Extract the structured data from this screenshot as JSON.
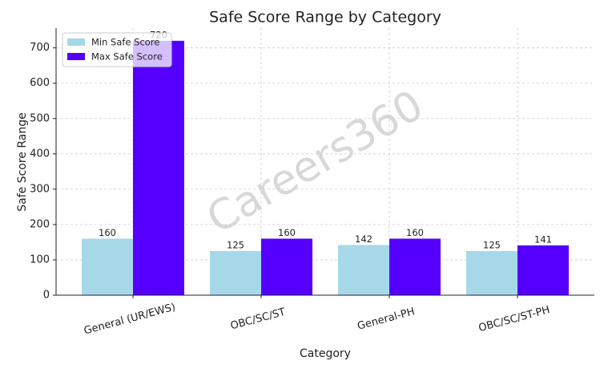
{
  "chart_data": {
    "type": "bar",
    "title": "Safe Score Range by Category",
    "x_label": "Category",
    "y_label": "Safe Score Range",
    "categories": [
      "General (UR/EWS)",
      "OBC/SC/ST",
      "General-PH",
      "OBC/SC/ST-PH"
    ],
    "series": [
      {
        "name": "Min Safe Score",
        "color": "#a6d8e8",
        "values": [
          160,
          125,
          142,
          125
        ]
      },
      {
        "name": "Max Safe Score",
        "color": "#5500ff",
        "values": [
          720,
          160,
          160,
          141
        ]
      }
    ],
    "ylim": [
      0,
      756
    ],
    "yticks": [
      0,
      100,
      200,
      300,
      400,
      500,
      600,
      700
    ],
    "grid": true,
    "legend": "upper left",
    "watermark": "Careers360"
  }
}
